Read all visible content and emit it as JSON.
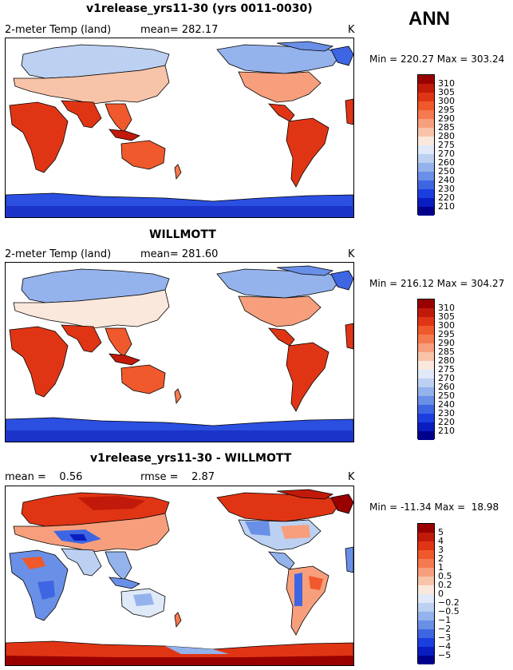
{
  "header": {
    "season": "ANN"
  },
  "panels": [
    {
      "title": "v1release_yrs11-30 (yrs 0011-0030)",
      "variable": "2-meter Temp (land)",
      "stat": "mean= 282.17",
      "units": "K",
      "minmax": "Min = 220.27 Max = 303.24"
    },
    {
      "title": "WILLMOTT",
      "variable": "2-meter Temp (land)",
      "stat": "mean= 281.60",
      "units": "K",
      "minmax": "Min = 216.12 Max = 304.27"
    },
    {
      "title": "v1release_yrs11-30 - WILLMOTT",
      "stat_left": "mean =    0.56",
      "stat_right": "rmse =    2.87",
      "units": "K",
      "minmax": "Min = -11.34 Max =  18.98"
    }
  ],
  "chart_data": [
    {
      "type": "heatmap",
      "title": "v1release_yrs11-30 (yrs 0011-0030)",
      "variable": "2-meter Temp (land)",
      "units": "K",
      "mean": 282.17,
      "min": 220.27,
      "max": 303.24,
      "colorbar_levels": [
        "310",
        "305",
        "300",
        "295",
        "290",
        "285",
        "280",
        "275",
        "270",
        "260",
        "250",
        "240",
        "230",
        "220",
        "210"
      ],
      "colorbar_colors": [
        "#990000",
        "#c11a0a",
        "#e03515",
        "#f0592c",
        "#f57a50",
        "#f79f7c",
        "#f8c4a9",
        "#fbe8dc",
        "#dfe9f8",
        "#bcd0f2",
        "#94b2ec",
        "#6a8fe6",
        "#3e66e3",
        "#1b3ee0",
        "#0a1dc0",
        "#00008c"
      ]
    },
    {
      "type": "heatmap",
      "title": "WILLMOTT",
      "variable": "2-meter Temp (land)",
      "units": "K",
      "mean": 281.6,
      "min": 216.12,
      "max": 304.27,
      "colorbar_levels": [
        "310",
        "305",
        "300",
        "295",
        "290",
        "285",
        "280",
        "275",
        "270",
        "260",
        "250",
        "240",
        "230",
        "220",
        "210"
      ],
      "colorbar_colors": [
        "#990000",
        "#c11a0a",
        "#e03515",
        "#f0592c",
        "#f57a50",
        "#f79f7c",
        "#f8c4a9",
        "#fbe8dc",
        "#dfe9f8",
        "#bcd0f2",
        "#94b2ec",
        "#6a8fe6",
        "#3e66e3",
        "#1b3ee0",
        "#0a1dc0",
        "#00008c"
      ]
    },
    {
      "type": "heatmap",
      "title": "v1release_yrs11-30 - WILLMOTT",
      "units": "K",
      "mean": 0.56,
      "rmse": 2.87,
      "min": -11.34,
      "max": 18.98,
      "colorbar_levels": [
        "5",
        "4",
        "3",
        "2",
        "1",
        "0.5",
        "0.2",
        "0",
        "−0.2",
        "−0.5",
        "−1",
        "−2",
        "−3",
        "−4",
        "−5"
      ],
      "colorbar_colors": [
        "#990000",
        "#c11a0a",
        "#e03515",
        "#f0592c",
        "#f57a50",
        "#f79f7c",
        "#f8c4a9",
        "#fbe8dc",
        "#dfe9f8",
        "#bcd0f2",
        "#94b2ec",
        "#6a8fe6",
        "#3e66e3",
        "#1b3ee0",
        "#0a1dc0",
        "#00008c"
      ]
    }
  ]
}
